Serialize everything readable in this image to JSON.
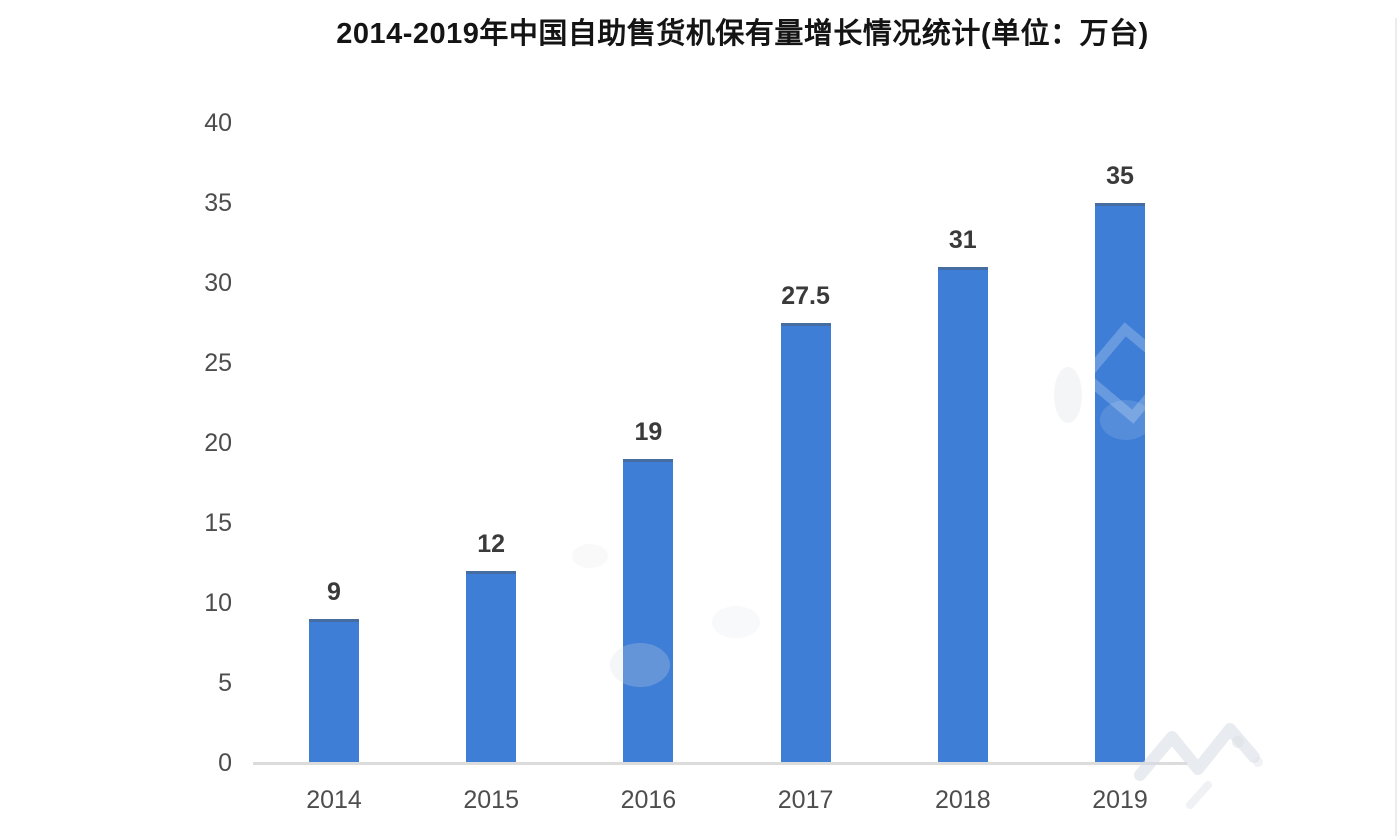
{
  "chart_data": {
    "type": "bar",
    "title": "2014-2019年中国自助售货机保有量增长情况统计(单位：万台)",
    "categories": [
      "2014",
      "2015",
      "2016",
      "2017",
      "2018",
      "2019"
    ],
    "values": [
      9,
      12,
      19,
      27.5,
      31,
      35
    ],
    "value_labels": [
      "9",
      "12",
      "19",
      "27.5",
      "31",
      "35"
    ],
    "yticks": [
      "0",
      "5",
      "10",
      "15",
      "20",
      "25",
      "30",
      "35",
      "40"
    ],
    "ytick_values": [
      0,
      5,
      10,
      15,
      20,
      25,
      30,
      35,
      40
    ],
    "ylim": [
      0,
      40
    ],
    "xlabel": "",
    "ylabel": "",
    "grid": false,
    "legend": null,
    "colors": {
      "bar": "#3e7ed6",
      "bar_top_edge": "rgba(76,92,108,0.5)",
      "axis_line": "#dcdcdc",
      "tick_label": "#4d4d4d",
      "value_label": "#3a3a3a",
      "title": "#141414",
      "background": "#ffffff"
    }
  }
}
